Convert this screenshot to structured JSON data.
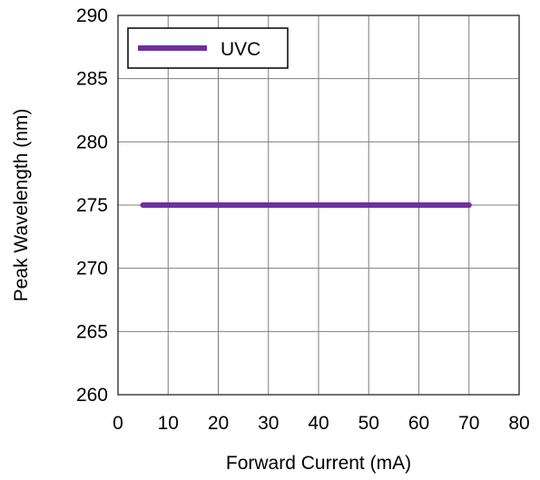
{
  "chart_data": {
    "type": "line",
    "title": "",
    "xlabel": "Forward Current (mA)",
    "ylabel": "Peak Wavelength (nm)",
    "xlim": [
      0,
      80
    ],
    "ylim": [
      260,
      290
    ],
    "xticks": [
      0,
      10,
      20,
      30,
      40,
      50,
      60,
      70,
      80
    ],
    "yticks": [
      260,
      265,
      270,
      275,
      280,
      285,
      290
    ],
    "grid": true,
    "legend_position": "top-left",
    "series": [
      {
        "name": "UVC",
        "color": "#7030a0",
        "x": [
          5,
          10,
          20,
          30,
          40,
          50,
          60,
          70
        ],
        "y": [
          275,
          275,
          275,
          275,
          275,
          275,
          275,
          275
        ]
      }
    ]
  }
}
